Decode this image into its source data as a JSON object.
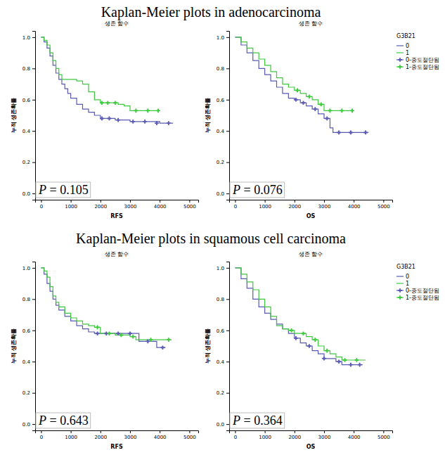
{
  "headings": [
    "Kaplan-Meier plots in adenocarcinoma",
    "Kaplan-Meier plots in squamous cell carcinoma"
  ],
  "chart_data": [
    {
      "type": "line",
      "title": "생존 함수",
      "x_label": "RFS",
      "y_label": "누적 생존확률",
      "annotation": "P = 0.105",
      "xlim": [
        -200,
        5300
      ],
      "xticks": [
        0,
        1000,
        2000,
        3000,
        4000,
        5000
      ],
      "ylim": [
        -0.04,
        1.04
      ],
      "yticks": [
        {
          "value": 0,
          "label": "0.0"
        },
        {
          "value": 0.2,
          "label": "0.2"
        },
        {
          "value": 0.4,
          "label": "0.4"
        },
        {
          "value": 0.6,
          "label": "0.6"
        },
        {
          "value": 0.8,
          "label": "0.8"
        },
        {
          "value": 1,
          "label": "1.0"
        }
      ],
      "series": [
        {
          "type": "line",
          "color": "#5a5ab4",
          "x": [
            0,
            100,
            200,
            300,
            400,
            500,
            600,
            700,
            800,
            900,
            1000,
            1200,
            1400,
            1600,
            1800,
            2000,
            2500,
            3000,
            4000,
            4450
          ],
          "values": [
            1.0,
            0.97,
            0.93,
            0.88,
            0.82,
            0.77,
            0.73,
            0.7,
            0.67,
            0.64,
            0.61,
            0.57,
            0.54,
            0.52,
            0.5,
            0.48,
            0.47,
            0.46,
            0.45,
            0.45
          ]
        },
        {
          "type": "line",
          "color": "#3ec83e",
          "x": [
            0,
            100,
            200,
            300,
            400,
            500,
            600,
            700,
            1200,
            1400,
            1600,
            1800,
            2000,
            2600,
            2800,
            3000,
            4000
          ],
          "values": [
            1.0,
            0.98,
            0.95,
            0.9,
            0.85,
            0.8,
            0.76,
            0.73,
            0.72,
            0.7,
            0.65,
            0.6,
            0.58,
            0.57,
            0.56,
            0.53,
            0.53
          ]
        },
        {
          "type": "scatter",
          "marker": "plus",
          "color": "#5a5ab4",
          "x": [
            2050,
            2300,
            2600,
            3100,
            3500,
            3900,
            4300
          ],
          "values": [
            0.48,
            0.48,
            0.47,
            0.46,
            0.46,
            0.45,
            0.45
          ]
        },
        {
          "type": "scatter",
          "marker": "plus",
          "color": "#3ec83e",
          "x": [
            2050,
            2250,
            2500,
            3200,
            3600,
            3950
          ],
          "values": [
            0.58,
            0.58,
            0.58,
            0.53,
            0.53,
            0.53
          ]
        }
      ]
    },
    {
      "type": "line",
      "title": "생존 함수",
      "x_label": "OS",
      "y_label": "누적 생존확률",
      "annotation": "P = 0.076",
      "legend": "right",
      "legend_title": "G3B21",
      "xlim": [
        -200,
        5300
      ],
      "xticks": [
        0,
        1000,
        2000,
        3000,
        4000,
        5000
      ],
      "ylim": [
        -0.04,
        1.04
      ],
      "yticks": [
        {
          "value": 0,
          "label": "0.0"
        },
        {
          "value": 0.2,
          "label": "0.2"
        },
        {
          "value": 0.4,
          "label": "0.4"
        },
        {
          "value": 0.6,
          "label": "0.6"
        },
        {
          "value": 0.8,
          "label": "0.8"
        },
        {
          "value": 1,
          "label": "1.0"
        }
      ],
      "series": [
        {
          "name": "0",
          "type": "line",
          "color": "#5a5ab4",
          "x": [
            0,
            200,
            400,
            600,
            800,
            1000,
            1200,
            1400,
            1600,
            1800,
            2000,
            2200,
            2400,
            2600,
            2800,
            3000,
            3200,
            3300,
            4500
          ],
          "values": [
            1.0,
            0.95,
            0.9,
            0.85,
            0.8,
            0.76,
            0.72,
            0.68,
            0.64,
            0.61,
            0.6,
            0.58,
            0.56,
            0.54,
            0.51,
            0.48,
            0.42,
            0.39,
            0.39
          ]
        },
        {
          "name": "1",
          "type": "line",
          "color": "#3ec83e",
          "x": [
            0,
            200,
            400,
            600,
            800,
            1000,
            1200,
            1400,
            1600,
            1800,
            2000,
            2200,
            2400,
            2600,
            2800,
            3000,
            4000
          ],
          "values": [
            1.0,
            0.97,
            0.93,
            0.9,
            0.86,
            0.82,
            0.78,
            0.74,
            0.7,
            0.68,
            0.66,
            0.64,
            0.62,
            0.6,
            0.57,
            0.53,
            0.53
          ]
        },
        {
          "name": "0-중도절단됨",
          "type": "scatter",
          "marker": "plus",
          "color": "#5a5ab4",
          "x": [
            2050,
            2300,
            2700,
            3100,
            3500,
            3900,
            4400
          ],
          "values": [
            0.6,
            0.58,
            0.54,
            0.48,
            0.39,
            0.39,
            0.39
          ]
        },
        {
          "name": "1-중도절단됨",
          "type": "scatter",
          "marker": "plus",
          "color": "#3ec83e",
          "x": [
            2100,
            2500,
            2900,
            3200,
            3600,
            3950
          ],
          "values": [
            0.66,
            0.62,
            0.57,
            0.53,
            0.53,
            0.53
          ]
        }
      ]
    },
    {
      "type": "line",
      "title": "생존 함수",
      "x_label": "RFS",
      "y_label": "누적 생존확률",
      "annotation": "P = 0.643",
      "xlim": [
        -200,
        5300
      ],
      "xticks": [
        0,
        1000,
        2000,
        3000,
        4000,
        5000
      ],
      "ylim": [
        -0.04,
        1.04
      ],
      "yticks": [
        {
          "value": 0,
          "label": "0.0"
        },
        {
          "value": 0.2,
          "label": "0.2"
        },
        {
          "value": 0.4,
          "label": "0.4"
        },
        {
          "value": 0.6,
          "label": "0.6"
        },
        {
          "value": 0.8,
          "label": "0.8"
        },
        {
          "value": 1,
          "label": "1.0"
        }
      ],
      "series": [
        {
          "type": "line",
          "color": "#5a5ab4",
          "x": [
            0,
            100,
            200,
            300,
            400,
            500,
            600,
            800,
            1000,
            1200,
            1400,
            1600,
            1800,
            3200,
            3300,
            3900,
            4200
          ],
          "values": [
            1.0,
            0.96,
            0.9,
            0.85,
            0.8,
            0.76,
            0.73,
            0.69,
            0.66,
            0.63,
            0.61,
            0.59,
            0.58,
            0.58,
            0.53,
            0.49,
            0.49
          ]
        },
        {
          "type": "line",
          "color": "#3ec83e",
          "x": [
            0,
            100,
            200,
            300,
            400,
            500,
            600,
            800,
            1000,
            1200,
            1400,
            1600,
            1800,
            2000,
            2500,
            3000,
            3200,
            4400
          ],
          "values": [
            1.0,
            0.98,
            0.94,
            0.88,
            0.82,
            0.78,
            0.75,
            0.71,
            0.68,
            0.66,
            0.64,
            0.63,
            0.62,
            0.58,
            0.57,
            0.56,
            0.54,
            0.54
          ]
        },
        {
          "type": "scatter",
          "marker": "plus",
          "color": "#5a5ab4",
          "x": [
            1900,
            2200,
            2600,
            3000,
            3600,
            4100
          ],
          "values": [
            0.58,
            0.58,
            0.58,
            0.58,
            0.53,
            0.49
          ]
        },
        {
          "type": "scatter",
          "marker": "plus",
          "color": "#3ec83e",
          "x": [
            1900,
            2300,
            2700,
            3100,
            3700,
            4300
          ],
          "values": [
            0.62,
            0.58,
            0.57,
            0.56,
            0.54,
            0.54
          ]
        }
      ]
    },
    {
      "type": "line",
      "title": "생존 함수",
      "x_label": "OS",
      "y_label": "누적 생존확률",
      "annotation": "P = 0.364",
      "legend": "right",
      "legend_title": "G3B21",
      "xlim": [
        -200,
        5300
      ],
      "xticks": [
        0,
        1000,
        2000,
        3000,
        4000,
        5000
      ],
      "ylim": [
        -0.04,
        1.04
      ],
      "yticks": [
        {
          "value": 0,
          "label": "0.0"
        },
        {
          "value": 0.2,
          "label": "0.2"
        },
        {
          "value": 0.4,
          "label": "0.4"
        },
        {
          "value": 0.6,
          "label": "0.6"
        },
        {
          "value": 0.8,
          "label": "0.8"
        },
        {
          "value": 1,
          "label": "1.0"
        }
      ],
      "series": [
        {
          "name": "0",
          "type": "line",
          "color": "#5a5ab4",
          "x": [
            0,
            200,
            400,
            600,
            800,
            1000,
            1200,
            1400,
            1600,
            1800,
            2000,
            2200,
            2400,
            2600,
            2800,
            3000,
            3400,
            3600,
            4300
          ],
          "values": [
            1.0,
            0.93,
            0.87,
            0.8,
            0.75,
            0.71,
            0.67,
            0.64,
            0.61,
            0.58,
            0.55,
            0.52,
            0.5,
            0.47,
            0.45,
            0.42,
            0.4,
            0.38,
            0.38
          ]
        },
        {
          "name": "1",
          "type": "line",
          "color": "#3ec83e",
          "x": [
            0,
            200,
            400,
            600,
            800,
            1000,
            1200,
            1400,
            1600,
            1800,
            2000,
            2400,
            2600,
            2800,
            3000,
            3200,
            3400,
            3600,
            4400
          ],
          "values": [
            1.0,
            0.96,
            0.91,
            0.86,
            0.8,
            0.75,
            0.69,
            0.63,
            0.61,
            0.6,
            0.58,
            0.56,
            0.54,
            0.5,
            0.47,
            0.45,
            0.43,
            0.41,
            0.41
          ]
        },
        {
          "name": "0-중도절단됨",
          "type": "scatter",
          "marker": "plus",
          "color": "#5a5ab4",
          "x": [
            2050,
            2500,
            3000,
            3500,
            3900,
            4200
          ],
          "values": [
            0.55,
            0.5,
            0.42,
            0.4,
            0.38,
            0.38
          ]
        },
        {
          "name": "1-중도절단됨",
          "type": "scatter",
          "marker": "plus",
          "color": "#3ec83e",
          "x": [
            1900,
            2300,
            2700,
            3100,
            3700,
            4100
          ],
          "values": [
            0.6,
            0.58,
            0.54,
            0.47,
            0.41,
            0.41
          ]
        }
      ]
    }
  ]
}
